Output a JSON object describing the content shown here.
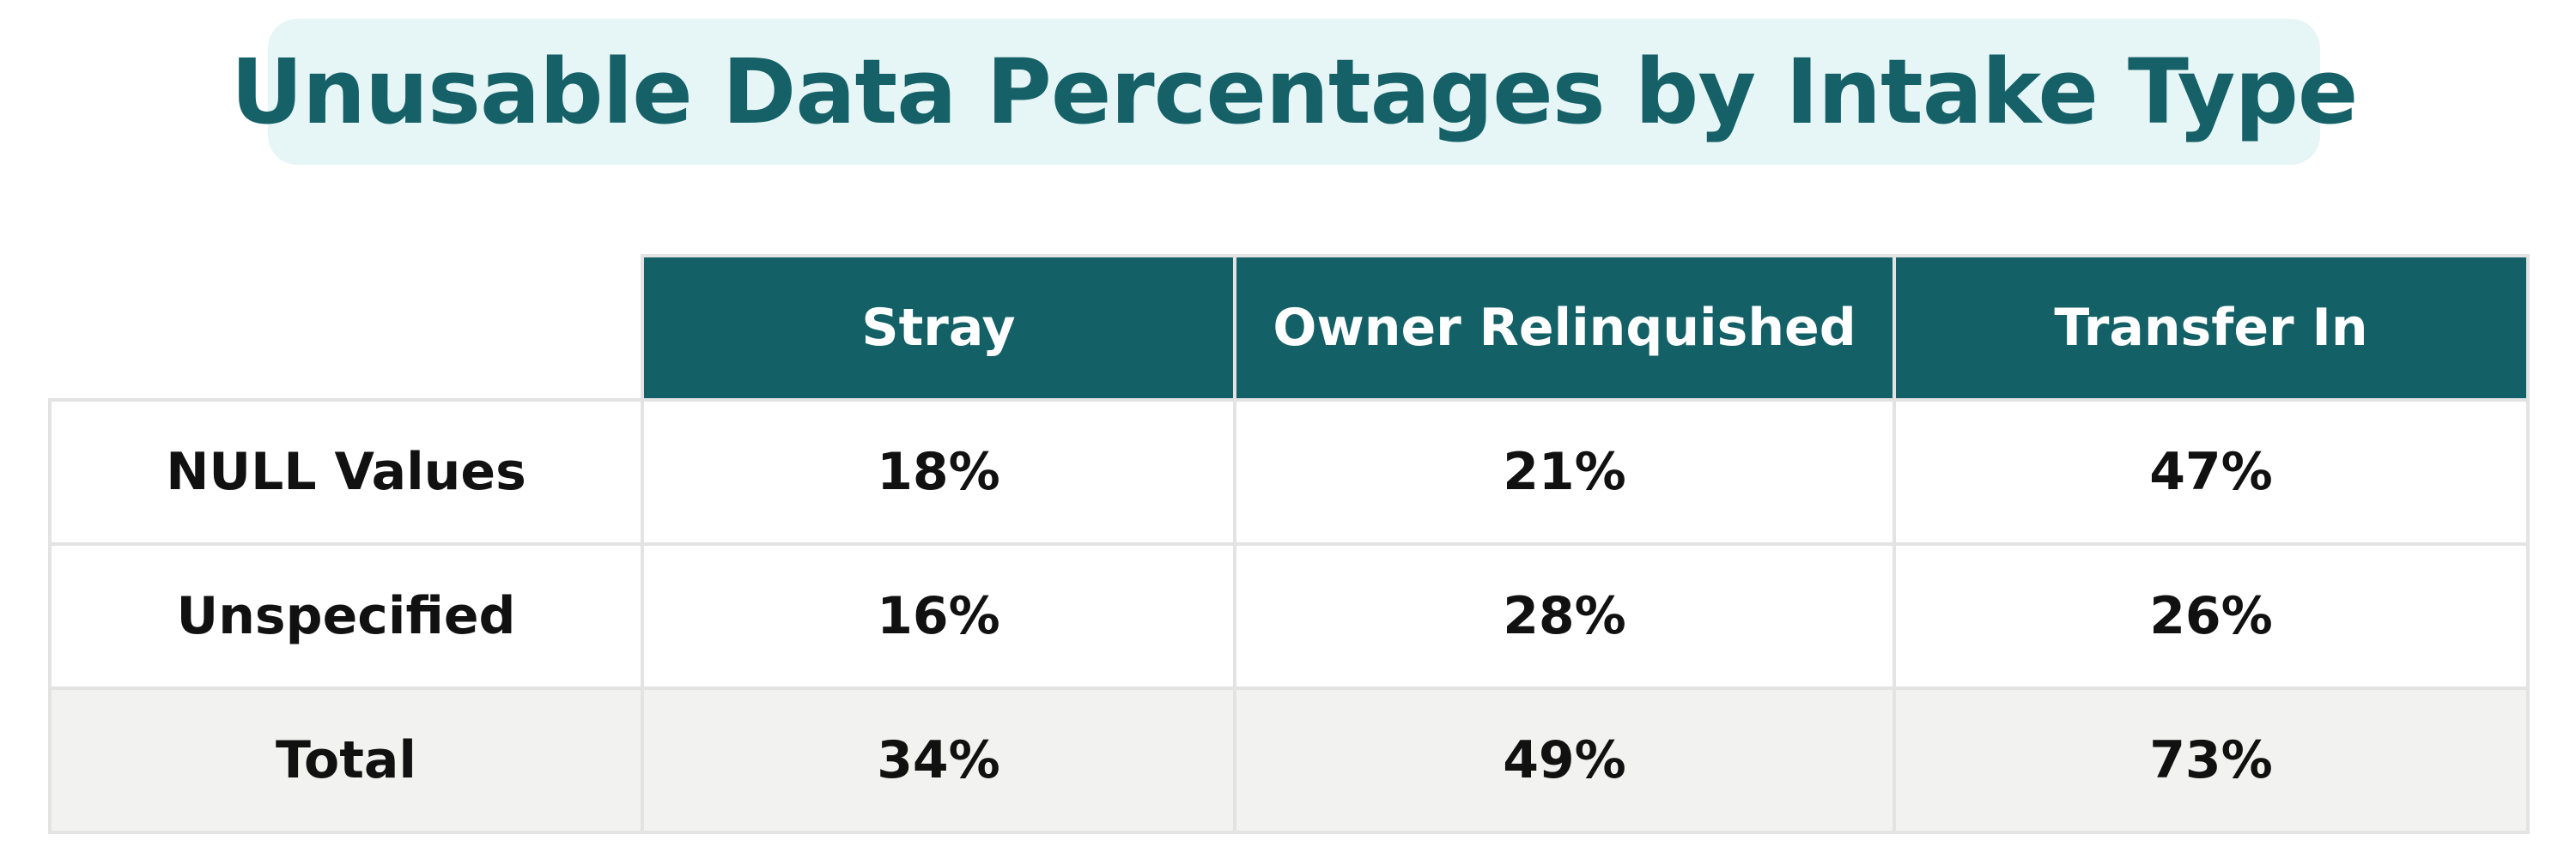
{
  "chart_data": {
    "type": "table",
    "title": "Unusable Data Percentages by Intake Type",
    "columns": [
      "Stray",
      "Owner Relinquished",
      "Transfer In"
    ],
    "rows": [
      {
        "label": "NULL Values",
        "values": [
          "18%",
          "21%",
          "47%"
        ]
      },
      {
        "label": "Unspecified",
        "values": [
          "16%",
          "28%",
          "26%"
        ]
      },
      {
        "label": "Total",
        "values": [
          "34%",
          "49%",
          "73%"
        ]
      }
    ]
  },
  "colors": {
    "title_text": "#156167",
    "title_background": "#e6f5f6",
    "header_background": "#136167",
    "header_text": "#ffffff",
    "total_row_background": "#f2f2f1",
    "grid_lines": "#e3e3e3"
  }
}
